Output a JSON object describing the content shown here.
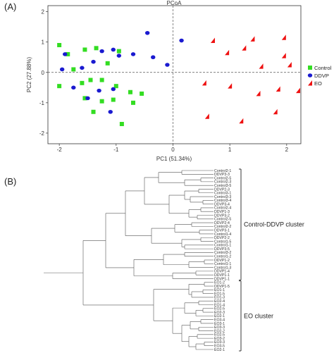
{
  "panels": {
    "a_label": "(A)",
    "b_label": "(B)"
  },
  "chart_data": [
    {
      "type": "scatter",
      "title": "PCoA",
      "xlabel": "PC1 (51.34%)",
      "ylabel": "PC2 (27.88%)",
      "xlim": [
        -2.2,
        2.25
      ],
      "ylim": [
        -2.35,
        2.2
      ],
      "xticks": [
        -2,
        -1,
        0,
        1,
        2
      ],
      "yticks": [
        -2,
        -1,
        0,
        1,
        2
      ],
      "zero_lines": true,
      "legend_position": "right",
      "series": [
        {
          "name": "Control",
          "marker": "square",
          "color": "#33dd22",
          "x": [
            -2.0,
            -1.85,
            -1.75,
            -1.55,
            -1.35,
            -1.15,
            -0.95,
            -2.0,
            -1.6,
            -1.45,
            -1.25,
            -1.0,
            -0.75,
            -0.55,
            -1.55,
            -1.25,
            -1.05,
            -0.7,
            -1.4,
            -0.9
          ],
          "y": [
            0.9,
            0.6,
            0.1,
            0.75,
            0.8,
            0.3,
            0.7,
            -0.45,
            -0.35,
            -0.25,
            -0.25,
            -0.45,
            -0.65,
            -0.7,
            -0.85,
            -0.95,
            -0.9,
            -1.0,
            -1.3,
            -1.7
          ]
        },
        {
          "name": "DDVP",
          "marker": "circle",
          "color": "#1a1ad0",
          "x": [
            -1.9,
            -1.95,
            -1.6,
            -1.4,
            -1.25,
            -1.05,
            -0.95,
            -0.7,
            -0.45,
            -0.35,
            -0.1,
            0.15,
            -1.75,
            -1.5,
            -1.3,
            -1.05,
            -1.1
          ],
          "y": [
            0.6,
            0.1,
            0.15,
            0.35,
            0.7,
            0.75,
            0.55,
            0.6,
            1.3,
            0.5,
            0.25,
            1.05,
            -0.5,
            -0.85,
            -0.6,
            -0.55,
            -1.3
          ]
        },
        {
          "name": "EO",
          "marker": "triangle",
          "color": "#ee1111",
          "x": [
            0.95,
            1.25,
            1.55,
            1.95,
            0.7,
            1.4,
            1.95,
            2.05,
            2.2,
            0.55,
            1.0,
            1.5,
            1.85,
            0.6,
            1.2,
            1.8
          ],
          "y": [
            0.65,
            0.8,
            0.2,
            0.55,
            1.05,
            1.1,
            1.15,
            0.25,
            -0.6,
            -0.35,
            -0.45,
            -0.7,
            -0.55,
            -1.45,
            -1.6,
            -1.3
          ]
        }
      ]
    },
    {
      "type": "dendrogram",
      "orientation": "horizontal",
      "leaves": [
        "Control2-1",
        "DDVP3-3",
        "Control2-5",
        "Control2-3",
        "Control3-5",
        "DDVP2-3",
        "Control3-1",
        "Control3-3",
        "Control3-4",
        "DDVP3-4",
        "Control2-4",
        "DDVP1-3",
        "DDVP3-2",
        "Control2-5",
        "DDVP2-4",
        "Control2-2",
        "DDVP3-1",
        "Control1-4",
        "DDVP2-2",
        "Control1-5",
        "Control1-1",
        "DDVP3-5",
        "Control3-2",
        "Control1-2",
        "DDVP1-2",
        "Control1-1",
        "Control1-3",
        "DDVP1-4",
        "DDVP1-1",
        "DDVP1-1",
        "EO1-2",
        "DDVP1-5",
        "EO1-1",
        "EO1-5",
        "EO1-3",
        "EO2-4",
        "EO1-4",
        "EO2-5",
        "EO2-3",
        "EO2-1",
        "EO3-4",
        "EO3-1",
        "EO3-3",
        "EO2-2",
        "EO2-5",
        "EO3-2",
        "EO3-3",
        "EO3-5",
        "EO2-1"
      ],
      "clusters": [
        {
          "name": "Control-DDVP cluster",
          "leaf_range": [
            0,
            29
          ]
        },
        {
          "name": "EO cluster",
          "leaf_range": [
            30,
            48
          ]
        }
      ]
    }
  ]
}
